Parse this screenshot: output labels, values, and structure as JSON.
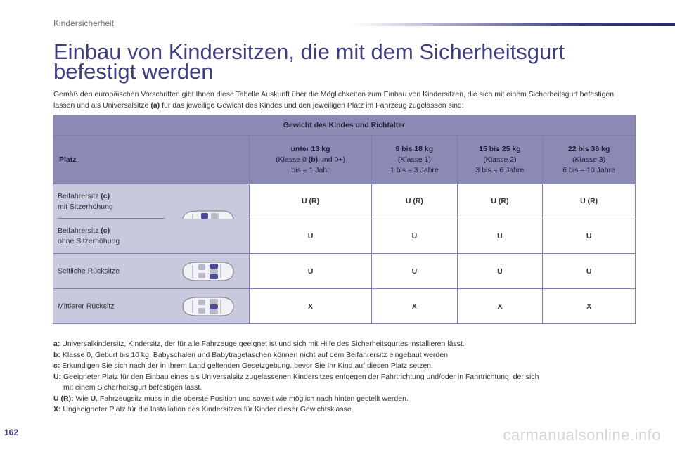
{
  "header": {
    "section": "Kindersicherheit"
  },
  "title": "Einbau von Kindersitzen, die mit dem Sicherheitsgurt befestigt werden",
  "intro": {
    "part1": "Gemäß den europäischen Vorschriften gibt Ihnen diese Tabelle Auskunft über die Möglichkeiten zum Einbau von Kindersitzen, die sich mit einem Sicherheitsgurt befestigen lassen und als Universalsitze ",
    "ref": "(a)",
    "part2": " für das jeweilige Gewicht des Kindes und den jeweiligen Platz im Fahrzeug zugelassen sind:"
  },
  "table": {
    "group_header": "Gewicht des Kindes und Richtalter",
    "place_header": "Platz",
    "columns": [
      {
        "weight": "unter 13 kg",
        "class_pre": "(Klasse 0 ",
        "class_ref": "(b)",
        "class_post": " und 0+)",
        "age": "bis ≈ 1 Jahr"
      },
      {
        "weight": "9 bis 18 kg",
        "class_pre": "(Klasse 1)",
        "class_ref": "",
        "class_post": "",
        "age": "1 bis ≈ 3 Jahre"
      },
      {
        "weight": "15 bis 25 kg",
        "class_pre": "(Klasse 2)",
        "class_ref": "",
        "class_post": "",
        "age": "3 bis ≈ 6 Jahre"
      },
      {
        "weight": "22 bis 36 kg",
        "class_pre": "(Klasse 3)",
        "class_ref": "",
        "class_post": "",
        "age": "6 bis ≈ 10 Jahre"
      }
    ],
    "rows": [
      {
        "place_line1": "Beifahrersitz ",
        "place_ref": "(c)",
        "place_line2": "mit Sitzerhöhung",
        "values": [
          "U (R)",
          "U (R)",
          "U (R)",
          "U (R)"
        ]
      },
      {
        "place_line1": "Beifahrersitz ",
        "place_ref": "(c)",
        "place_line2": "ohne Sitzerhöhung",
        "values": [
          "U",
          "U",
          "U",
          "U"
        ]
      },
      {
        "place_line1": "Seitliche Rücksitze",
        "place_ref": "",
        "place_line2": "",
        "values": [
          "U",
          "U",
          "U",
          "U"
        ]
      },
      {
        "place_line1": "Mittlerer Rücksitz",
        "place_ref": "",
        "place_line2": "",
        "values": [
          "X",
          "X",
          "X",
          "X"
        ]
      }
    ],
    "icons": [
      "car-front-seat-icon",
      "car-rear-side-seats-icon",
      "car-rear-middle-seat-icon"
    ],
    "colors": {
      "header_bg": "#8a8ab4",
      "place_bg": "#c9c9de",
      "highlight": "#4a4a9a"
    }
  },
  "notes": [
    {
      "key": "a:",
      "text": " Universalkindersitz, Kindersitz, der für alle Fahrzeuge geeignet ist und sich mit Hilfe des Sicherheitsgurtes installieren lässt."
    },
    {
      "key": "b:",
      "text": " Klasse 0, Geburt bis 10 kg. Babyschalen und Babytragetaschen können nicht auf dem Beifahrersitz eingebaut werden"
    },
    {
      "key": "c:",
      "text": " Erkundigen Sie sich nach der in Ihrem Land geltenden Gesetzgebung, bevor Sie Ihr Kind auf diesen Platz setzen."
    },
    {
      "key": "U:",
      "text": " Geeigneter Platz für den Einbau eines als Universalsitz zugelassenen Kindersitzes entgegen der Fahrtrichtung und/oder in Fahrtrichtung, der sich"
    },
    {
      "key": "",
      "text": "mit einem Sicherheitsgurt befestigen lässt."
    },
    {
      "key": "U (R):",
      "text": " Wie ",
      "bold2": "U",
      "text2": ", Fahrzeugsitz muss in die oberste Position und soweit wie möglich nach hinten gestellt werden."
    },
    {
      "key": "X:",
      "text": " Ungeeigneter Platz für die Installation des Kindersitzes für Kinder dieser Gewichtsklasse."
    }
  ],
  "page_number": "162",
  "watermark": "carmanualsonline.info"
}
